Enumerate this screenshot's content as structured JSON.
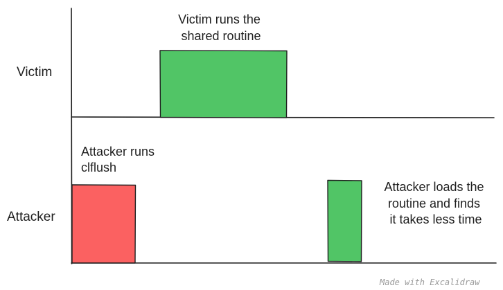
{
  "lanes": {
    "victim": "Victim",
    "attacker": "Attacker"
  },
  "events": {
    "victim_runs": [
      "Victim runs the",
      "shared routine"
    ],
    "attacker_clflush": [
      "Attacker runs",
      "clflush"
    ],
    "attacker_loads": [
      "Attacker loads the",
      "routine and finds",
      "it takes less time"
    ]
  },
  "colors": {
    "victim_block": "#51c566",
    "clflush_block": "#fb6161",
    "load_block": "#51c566",
    "stroke": "#1e1e1e"
  },
  "watermark": "Made with Excalidraw"
}
